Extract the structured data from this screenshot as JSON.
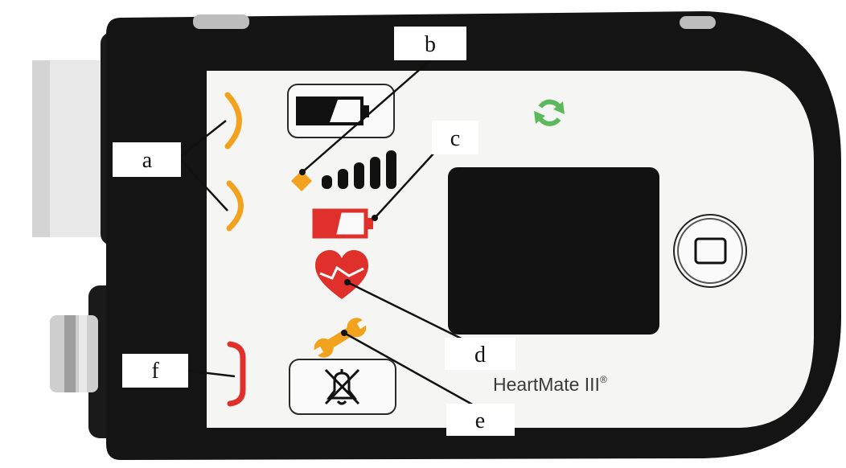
{
  "labels": {
    "a": "a",
    "b": "b",
    "c": "c",
    "d": "d",
    "e": "e",
    "f": "f"
  },
  "brand": {
    "name": "HeartMate III",
    "mark": "®"
  },
  "colors": {
    "amber": "#f2a21c",
    "red": "#e0302c",
    "green": "#5cb85c",
    "body": "#111111",
    "face": "#f5f5f3",
    "screen": "#121212"
  },
  "icons": [
    "battery-button-icon",
    "power-diamond-icon",
    "signal-bars-icon",
    "low-battery-icon",
    "broken-heart-icon",
    "wrench-icon",
    "alarm-silence-icon",
    "refresh-icon",
    "display-button-icon"
  ]
}
